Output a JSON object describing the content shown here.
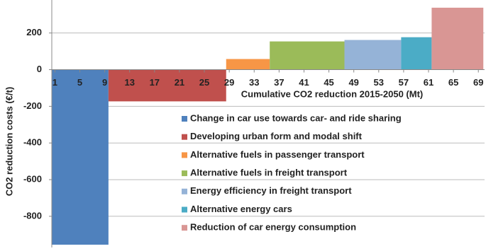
{
  "chart_data": {
    "type": "bar",
    "x_label": "Cumulative CO2 reduction 2015-2050 (Mt)",
    "y_label": "CO2 reduction costs (€/t)",
    "xlim": [
      0.5,
      70
    ],
    "ylim": [
      -970,
      380
    ],
    "xticks": [
      1,
      5,
      9,
      13,
      17,
      21,
      25,
      29,
      33,
      37,
      41,
      45,
      49,
      53,
      57,
      61,
      65,
      69
    ],
    "yticks": [
      -800,
      -600,
      -400,
      -200,
      0,
      200
    ],
    "grid": true,
    "series": [
      {
        "name": "Change in car use towards car- and ride sharing",
        "color": "#4f81bd",
        "bins": [
          0.5,
          9.6
        ],
        "values": [
          -955
        ]
      },
      {
        "name": "Developing urban form and modal shift",
        "color": "#c0504d",
        "bins": [
          9.6,
          28.5
        ],
        "values": [
          -173
        ]
      },
      {
        "name": "Alternative fuels in passenger transport",
        "color": "#f79646",
        "bins": [
          28.5,
          35.5
        ],
        "values": [
          58
        ]
      },
      {
        "name": "Alternative fuels in freight transport",
        "color": "#9bbb59",
        "bins": [
          35.5,
          47.5
        ],
        "values": [
          154
        ]
      },
      {
        "name": "Energy efficiency in freight transport",
        "color": "#95b3d7",
        "bins": [
          47.5,
          56.6
        ],
        "values": [
          162
        ]
      },
      {
        "name": "Alternative energy cars",
        "color": "#4bacc6",
        "bins": [
          56.6,
          61.5
        ],
        "values": [
          177
        ]
      },
      {
        "name": "Reduction of car energy consumption",
        "color": "#d99694",
        "bins": [
          61.5,
          69.8
        ],
        "values": [
          338
        ]
      }
    ]
  }
}
